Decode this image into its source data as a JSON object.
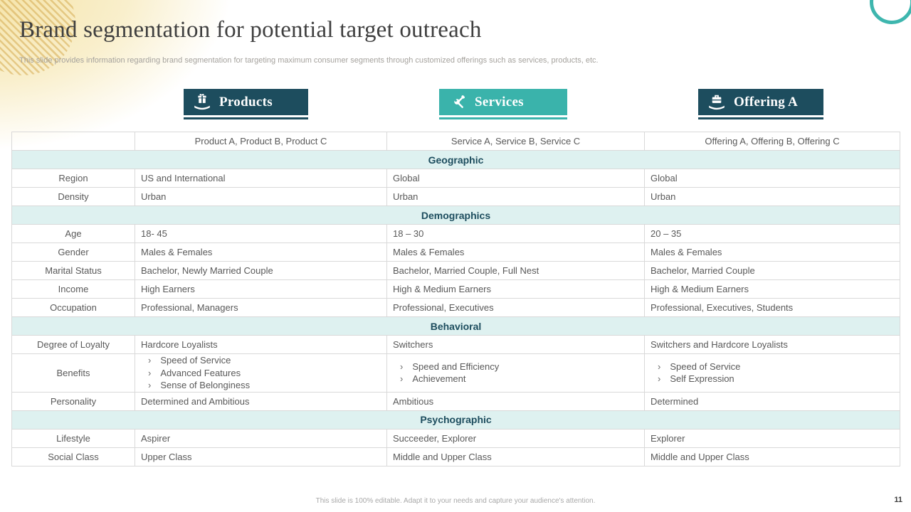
{
  "slide": {
    "title": "Brand segmentation for potential target outreach",
    "subtitle": "This slide provides information regarding brand segmentation for targeting maximum consumer segments through customized offerings such as services, products, etc.",
    "footer": "This slide is 100% editable.  Adapt it to your needs and capture your audience's attention.",
    "page_number": "11"
  },
  "colors": {
    "dark_teal": "#1d4d5e",
    "teal": "#3ab3ab",
    "section_bg": "#def1f0",
    "table_border": "#d9d9d9",
    "cell_text": "#595959",
    "ring_teal": "#3eb6ae"
  },
  "tabs": [
    {
      "label": "Products",
      "icon": "gift-hand-icon",
      "variant": "dark"
    },
    {
      "label": "Services",
      "icon": "tools-icon",
      "variant": "teal"
    },
    {
      "label": "Offering A",
      "icon": "briefcase-hand-icon",
      "variant": "dark"
    }
  ],
  "table": {
    "column_headers": [
      "",
      "Product A, Product B, Product C",
      "Service A, Service B, Service C",
      "Offering A, Offering B, Offering C"
    ],
    "sections": [
      {
        "name": "Geographic",
        "rows": [
          {
            "label": "Region",
            "values": [
              "US and International",
              "Global",
              "Global"
            ]
          },
          {
            "label": "Density",
            "values": [
              "Urban",
              "Urban",
              "Urban"
            ]
          }
        ]
      },
      {
        "name": "Demographics",
        "rows": [
          {
            "label": "Age",
            "values": [
              "18- 45",
              "18 – 30",
              "20 – 35"
            ]
          },
          {
            "label": "Gender",
            "values": [
              "Males & Females",
              "Males & Females",
              "Males & Females"
            ]
          },
          {
            "label": "Marital Status",
            "values": [
              "Bachelor, Newly Married Couple",
              "Bachelor, Married Couple, Full Nest",
              "Bachelor, Married Couple"
            ]
          },
          {
            "label": "Income",
            "values": [
              "High Earners",
              "High & Medium Earners",
              "High & Medium Earners"
            ]
          },
          {
            "label": "Occupation",
            "values": [
              "Professional, Managers",
              "Professional, Executives",
              "Professional, Executives, Students"
            ]
          }
        ]
      },
      {
        "name": "Behavioral",
        "rows": [
          {
            "label": "Degree of Loyalty",
            "values": [
              "Hardcore Loyalists",
              "Switchers",
              "Switchers and Hardcore Loyalists"
            ]
          },
          {
            "label": "Benefits",
            "values": [
              [
                "Speed of Service",
                "Advanced Features",
                "Sense of Belonginess"
              ],
              [
                "Speed and Efficiency",
                "Achievement"
              ],
              [
                "Speed of Service",
                "Self Expression"
              ]
            ]
          },
          {
            "label": "Personality",
            "values": [
              "Determined and Ambitious",
              "Ambitious",
              "Determined"
            ]
          }
        ]
      },
      {
        "name": "Psychographic",
        "rows": [
          {
            "label": "Lifestyle",
            "values": [
              "Aspirer",
              "Succeeder, Explorer",
              "Explorer"
            ]
          },
          {
            "label": "Social Class",
            "values": [
              "Upper Class",
              "Middle and Upper Class",
              "Middle and Upper Class"
            ]
          }
        ]
      }
    ]
  }
}
